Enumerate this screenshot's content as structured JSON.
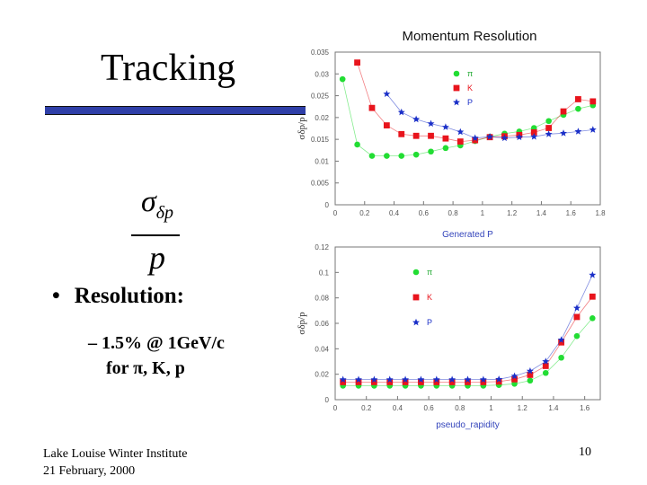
{
  "slide": {
    "title": "Tracking",
    "formula": {
      "sigma": "σ",
      "subscript": "δp",
      "denominator": "p"
    },
    "bullet": "Resolution:",
    "sub_line1": "– 1.5% @ 1GeV/c",
    "sub_line2": "for π, K, p",
    "footer_event": "Lake Louise Winter Institute",
    "footer_date": "21 February, 2000",
    "page_number": "10"
  },
  "chart_data": [
    {
      "type": "scatter",
      "title": "Momentum Resolution",
      "xlabel": "Generated P",
      "ylabel": "σδp/p",
      "xlim": [
        0,
        1.8
      ],
      "ylim": [
        0,
        0.035
      ],
      "xticks": [
        "0",
        "0.2",
        "0.4",
        "0.6",
        "0.8",
        "1",
        "1.2",
        "1.4",
        "1.6",
        "1.8"
      ],
      "yticks": [
        "0",
        "0.005",
        "0.01",
        "0.015",
        "0.02",
        "0.025",
        "0.03",
        "0.035"
      ],
      "legend": [
        "π",
        "K",
        "P"
      ],
      "series": [
        {
          "name": "π",
          "color": "#22dd33",
          "marker": "circle",
          "x": [
            0.05,
            0.15,
            0.25,
            0.35,
            0.45,
            0.55,
            0.65,
            0.75,
            0.85,
            0.95,
            1.05,
            1.15,
            1.25,
            1.35,
            1.45,
            1.55,
            1.65,
            1.75
          ],
          "y": [
            0.0288,
            0.0138,
            0.0112,
            0.0112,
            0.0112,
            0.0115,
            0.0122,
            0.013,
            0.0136,
            0.0146,
            0.0156,
            0.0163,
            0.0168,
            0.0176,
            0.0192,
            0.0206,
            0.022,
            0.0228
          ]
        },
        {
          "name": "K",
          "color": "#e8141c",
          "marker": "square",
          "x": [
            0.15,
            0.25,
            0.35,
            0.45,
            0.55,
            0.65,
            0.75,
            0.85,
            0.95,
            1.05,
            1.15,
            1.25,
            1.35,
            1.45,
            1.55,
            1.65,
            1.75
          ],
          "y": [
            0.0326,
            0.0222,
            0.0182,
            0.0162,
            0.0158,
            0.0158,
            0.0152,
            0.0145,
            0.0148,
            0.0155,
            0.0157,
            0.016,
            0.0166,
            0.0176,
            0.0214,
            0.0242,
            0.0237
          ]
        },
        {
          "name": "P",
          "color": "#1a2fc8",
          "marker": "star",
          "x": [
            0.35,
            0.45,
            0.55,
            0.65,
            0.75,
            0.85,
            0.95,
            1.05,
            1.15,
            1.25,
            1.35,
            1.45,
            1.55,
            1.65,
            1.75
          ],
          "y": [
            0.0254,
            0.0212,
            0.0196,
            0.0186,
            0.0178,
            0.0167,
            0.0153,
            0.0156,
            0.0153,
            0.0155,
            0.0156,
            0.0162,
            0.0164,
            0.0168,
            0.0172
          ]
        }
      ]
    },
    {
      "type": "scatter",
      "title": "",
      "xlabel": "pseudo_rapidity",
      "ylabel": "σδp/p",
      "xlim": [
        0,
        1.7
      ],
      "ylim": [
        0,
        0.12
      ],
      "xticks": [
        "0",
        "0.2",
        "0.4",
        "0.6",
        "0.8",
        "1",
        "1.2",
        "1.4",
        "1.6"
      ],
      "yticks": [
        "0",
        "0.02",
        "0.04",
        "0.06",
        "0.08",
        "0.1",
        "0.12"
      ],
      "legend": [
        "π",
        "K",
        "P"
      ],
      "series": [
        {
          "name": "π",
          "color": "#22dd33",
          "marker": "circle",
          "x": [
            0.05,
            0.15,
            0.25,
            0.35,
            0.45,
            0.55,
            0.65,
            0.75,
            0.85,
            0.95,
            1.05,
            1.15,
            1.25,
            1.35,
            1.45,
            1.55,
            1.65
          ],
          "y": [
            0.011,
            0.011,
            0.011,
            0.011,
            0.011,
            0.011,
            0.011,
            0.011,
            0.011,
            0.011,
            0.0115,
            0.0125,
            0.015,
            0.021,
            0.033,
            0.05,
            0.064
          ]
        },
        {
          "name": "K",
          "color": "#e8141c",
          "marker": "square",
          "x": [
            0.05,
            0.15,
            0.25,
            0.35,
            0.45,
            0.55,
            0.65,
            0.75,
            0.85,
            0.95,
            1.05,
            1.15,
            1.25,
            1.35,
            1.45,
            1.55,
            1.65
          ],
          "y": [
            0.0138,
            0.0138,
            0.0138,
            0.0138,
            0.0138,
            0.0138,
            0.0138,
            0.0138,
            0.0138,
            0.0138,
            0.0142,
            0.016,
            0.0195,
            0.0265,
            0.045,
            0.065,
            0.081
          ]
        },
        {
          "name": "P",
          "color": "#1a2fc8",
          "marker": "star",
          "x": [
            0.05,
            0.15,
            0.25,
            0.35,
            0.45,
            0.55,
            0.65,
            0.75,
            0.85,
            0.95,
            1.05,
            1.15,
            1.25,
            1.35,
            1.45,
            1.55,
            1.65
          ],
          "y": [
            0.0158,
            0.0158,
            0.0158,
            0.0158,
            0.0158,
            0.0158,
            0.0158,
            0.0158,
            0.0158,
            0.0158,
            0.016,
            0.0185,
            0.0225,
            0.03,
            0.047,
            0.072,
            0.098
          ]
        }
      ]
    }
  ]
}
